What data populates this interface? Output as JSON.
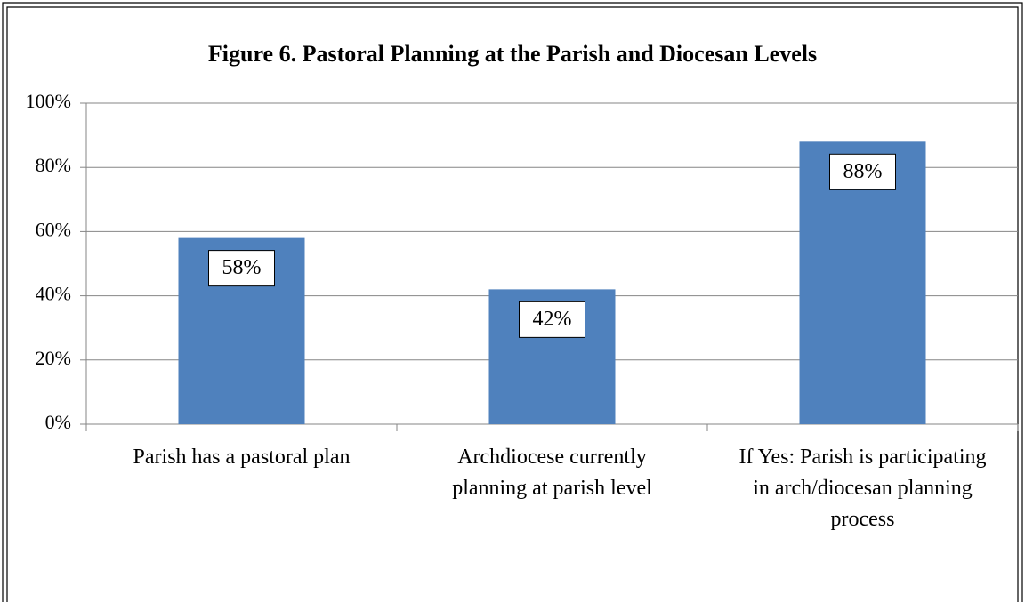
{
  "chart_data": {
    "type": "bar",
    "title": "Figure 6. Pastoral Planning at the Parish and Diocesan Levels",
    "categories": [
      "Parish has a pastoral plan",
      "Archdiocese currently planning at parish level",
      "If Yes: Parish is participating in arch/diocesan planning process"
    ],
    "values": [
      58,
      42,
      88
    ],
    "value_labels": [
      "58%",
      "42%",
      "88%"
    ],
    "color": "#4f81bd",
    "ylim": [
      0,
      100
    ],
    "yticks": [
      {
        "value": 0,
        "label": "0%"
      },
      {
        "value": 20,
        "label": "20%"
      },
      {
        "value": 40,
        "label": "40%"
      },
      {
        "value": 60,
        "label": "60%"
      },
      {
        "value": 80,
        "label": "80%"
      },
      {
        "value": 100,
        "label": "100%"
      }
    ],
    "grid": true
  }
}
